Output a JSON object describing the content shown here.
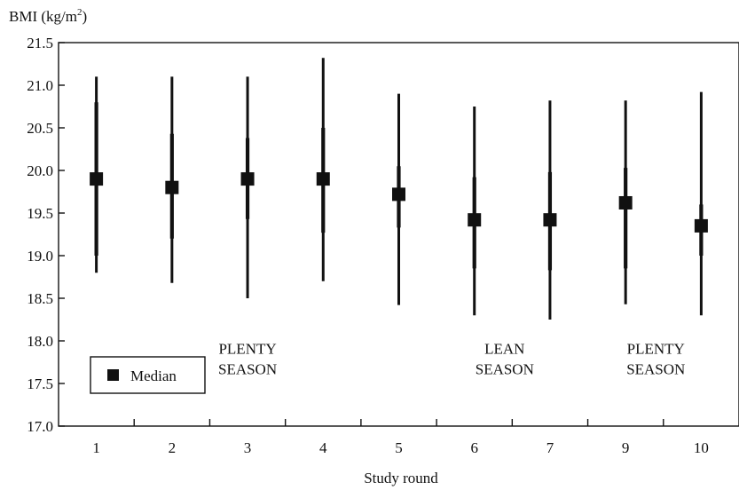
{
  "chart_data": {
    "type": "errorbar",
    "title": "",
    "ylabel": "BMI (kg/m",
    "ylabel_sup": "2",
    "ylabel_close": ")",
    "xlabel": "Study round",
    "ylim": [
      17.0,
      21.5
    ],
    "yticks": [
      "17.0",
      "17.5",
      "18.0",
      "18.5",
      "19.0",
      "19.5",
      "20.0",
      "20.5",
      "21.0",
      "21.5"
    ],
    "categories": [
      "1",
      "2",
      "3",
      "4",
      "5",
      "6",
      "7",
      "9",
      "10"
    ],
    "series": [
      {
        "name": "Median",
        "median": [
          19.9,
          19.8,
          19.9,
          19.9,
          19.72,
          19.42,
          19.42,
          19.62,
          19.35
        ],
        "low": [
          18.8,
          18.68,
          18.5,
          18.7,
          18.42,
          18.3,
          18.25,
          18.43,
          18.3
        ],
        "high": [
          21.1,
          21.1,
          21.1,
          21.32,
          20.9,
          20.75,
          20.82,
          20.82,
          20.92
        ],
        "inner_low": [
          19.0,
          19.2,
          19.43,
          19.27,
          19.33,
          18.85,
          18.83,
          18.85,
          19.0
        ],
        "inner_high": [
          20.8,
          20.43,
          20.38,
          20.5,
          20.05,
          19.92,
          19.98,
          20.03,
          19.6
        ]
      }
    ],
    "annotations": [
      {
        "lines": [
          "PLENTY",
          "SEASON"
        ],
        "x": 3,
        "y": 17.85
      },
      {
        "lines": [
          "LEAN",
          "SEASON"
        ],
        "x": 6.4,
        "y": 17.85
      },
      {
        "lines": [
          "PLENTY",
          "SEASON"
        ],
        "x": 8.4,
        "y": 17.85
      }
    ],
    "legend": {
      "label": "Median",
      "position": "bottom-left"
    },
    "grid": false
  }
}
